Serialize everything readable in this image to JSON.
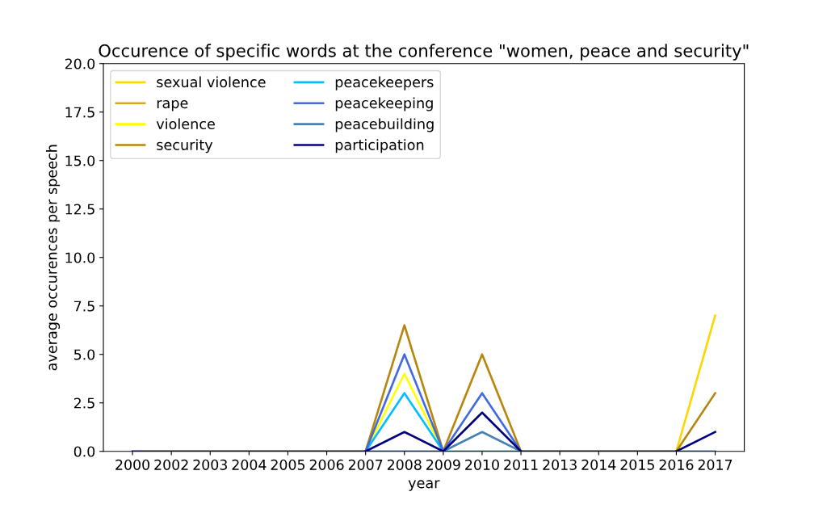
{
  "chart_data": {
    "type": "line",
    "title": "Occurence of specific words at the conference \"women, peace and security\"",
    "xlabel": "year",
    "ylabel": "average occurences per speech",
    "categories": [
      "2000",
      "2002",
      "2003",
      "2004",
      "2005",
      "2006",
      "2007",
      "2008",
      "2009",
      "2010",
      "2011",
      "2013",
      "2014",
      "2015",
      "2016",
      "2017"
    ],
    "series": [
      {
        "name": "sexual violence",
        "color": "#ffd700",
        "values": [
          null,
          null,
          null,
          null,
          null,
          null,
          null,
          null,
          null,
          null,
          null,
          null,
          null,
          null,
          0,
          7
        ]
      },
      {
        "name": "rape",
        "color": "#daa520",
        "values": [
          null,
          null,
          null,
          null,
          null,
          null,
          null,
          null,
          null,
          null,
          null,
          null,
          null,
          null,
          null,
          null
        ]
      },
      {
        "name": "violence",
        "color": "#ffff00",
        "values": [
          null,
          null,
          null,
          null,
          null,
          null,
          0,
          4,
          0,
          null,
          null,
          null,
          null,
          null,
          null,
          null
        ]
      },
      {
        "name": "security",
        "color": "#b8860b",
        "values": [
          null,
          null,
          null,
          null,
          null,
          null,
          0,
          6.5,
          0,
          5,
          0,
          null,
          null,
          null,
          0,
          3
        ]
      },
      {
        "name": "peacekeepers",
        "color": "#00bfff",
        "values": [
          null,
          null,
          null,
          null,
          null,
          null,
          0,
          3,
          0,
          0,
          0,
          null,
          null,
          null,
          null,
          null
        ]
      },
      {
        "name": "peacekeeping",
        "color": "#4169e1",
        "values": [
          null,
          null,
          null,
          null,
          null,
          null,
          0,
          5,
          0,
          3,
          0,
          null,
          null,
          null,
          null,
          null
        ]
      },
      {
        "name": "peacebuilding",
        "color": "#4682b4",
        "values": [
          null,
          null,
          null,
          null,
          null,
          null,
          0,
          0,
          0,
          1,
          0,
          null,
          null,
          null,
          0,
          0
        ]
      },
      {
        "name": "participation",
        "color": "#000080",
        "values": [
          0,
          0,
          0,
          0,
          0,
          0,
          0,
          1,
          0,
          2,
          0,
          0,
          0,
          0,
          0,
          1
        ]
      }
    ],
    "ylim": [
      0,
      20
    ],
    "yticks": [
      {
        "value": 0,
        "label": "0.0"
      },
      {
        "value": 2.5,
        "label": "2.5"
      },
      {
        "value": 5,
        "label": "5.0"
      },
      {
        "value": 7.5,
        "label": "7.5"
      },
      {
        "value": 10,
        "label": "10.0"
      },
      {
        "value": 12.5,
        "label": "12.5"
      },
      {
        "value": 15,
        "label": "15.0"
      },
      {
        "value": 17.5,
        "label": "17.5"
      },
      {
        "value": 20,
        "label": "20.0"
      }
    ],
    "grid": false,
    "legend": "top left"
  }
}
